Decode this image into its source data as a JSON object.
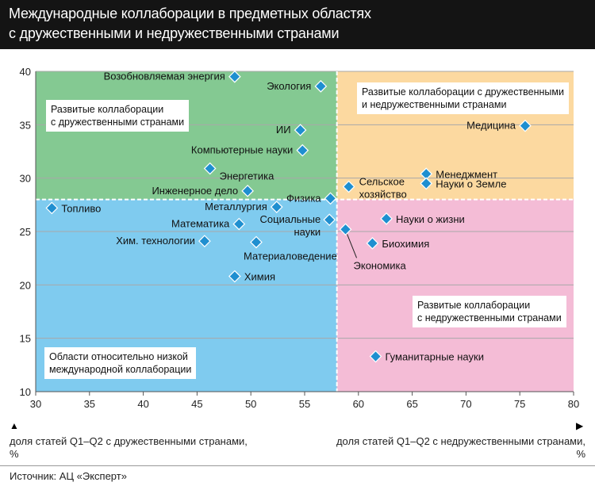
{
  "title_line1": "Международные коллаборации в предметных областях",
  "title_line2": "с дружественными и недружественными странами",
  "xlabel_left_line1": "доля статей Q1–Q2 с дружественными странами,",
  "xlabel_left_line2": "%",
  "xlabel_right_line1": "доля статей Q1–Q2 с недружественными странами,",
  "xlabel_right_line2": "%",
  "source": "Источник: АЦ «Эксперт»",
  "quadrants": {
    "top_left_line1": "Развитые коллаборации",
    "top_left_line2": "с дружественными странами",
    "top_right_line1": "Развитые коллаборации с дружественными",
    "top_right_line2": "и недружественными странами",
    "bottom_right_line1": "Развитые коллаборации",
    "bottom_right_line2": "с недружественными странами",
    "bottom_left_line1": "Области относительно низкой",
    "bottom_left_line2": "международной коллаборации"
  },
  "colors": {
    "top_left": "#84c992",
    "top_right": "#fcd9a0",
    "bottom_left": "#7fcbef",
    "bottom_right": "#f4bcd6",
    "marker": "#1f8fd0",
    "marker_stroke": "#ffffff"
  },
  "chart_data": {
    "type": "scatter",
    "title": "Международные коллаборации в предметных областях с дружественными и недружественными странами",
    "xlim": [
      30,
      80
    ],
    "ylim": [
      10,
      40
    ],
    "x_ticks": [
      "30",
      "35",
      "40",
      "45",
      "50",
      "55",
      "60",
      "65",
      "70",
      "75",
      "80"
    ],
    "y_ticks": [
      "10",
      "15",
      "20",
      "25",
      "30",
      "35",
      "40"
    ],
    "divider_x": 58,
    "divider_y": 28,
    "points": [
      {
        "label": "Возобновляемая энергия",
        "x": 48.5,
        "y": 39.5,
        "anchor": "end",
        "pos": "left"
      },
      {
        "label": "Экология",
        "x": 56.5,
        "y": 38.6,
        "anchor": "end",
        "pos": "left"
      },
      {
        "label": "ИИ",
        "x": 54.6,
        "y": 34.5,
        "anchor": "end",
        "pos": "left"
      },
      {
        "label": "Компьютерные науки",
        "x": 54.8,
        "y": 32.6,
        "anchor": "end",
        "pos": "left"
      },
      {
        "label": "Энергетика",
        "x": 46.2,
        "y": 30.9,
        "anchor": "start",
        "pos": "below-right"
      },
      {
        "label": "Инженерное дело",
        "x": 49.7,
        "y": 28.8,
        "anchor": "end",
        "pos": "left"
      },
      {
        "label": "Физика",
        "x": 57.4,
        "y": 28.1,
        "anchor": "end",
        "pos": "left"
      },
      {
        "label": "Металлургия",
        "x": 52.4,
        "y": 27.3,
        "anchor": "end",
        "pos": "left"
      },
      {
        "label": "Топливо",
        "x": 31.5,
        "y": 27.2,
        "anchor": "start",
        "pos": "right"
      },
      {
        "label": "Математика",
        "x": 48.9,
        "y": 25.7,
        "anchor": "end",
        "pos": "left"
      },
      {
        "label": "Социальные науки",
        "x": 57.3,
        "y": 26.1,
        "anchor": "end",
        "pos": "left-two-line",
        "label_line1": "Социальные",
        "label_line2": "науки"
      },
      {
        "label": "Хим. технологии",
        "x": 45.7,
        "y": 24.1,
        "anchor": "end",
        "pos": "left"
      },
      {
        "label": "Материаловедение",
        "x": 50.5,
        "y": 24.0,
        "anchor": "start",
        "pos": "below"
      },
      {
        "label": "Химия",
        "x": 48.5,
        "y": 20.8,
        "anchor": "start",
        "pos": "right"
      },
      {
        "label": "Сельское хозяйство",
        "x": 59.1,
        "y": 29.2,
        "anchor": "start",
        "pos": "right-two-line",
        "label_line1": "Сельское",
        "label_line2": "хозяйство"
      },
      {
        "label": "Менеджмент",
        "x": 66.3,
        "y": 30.4,
        "anchor": "start",
        "pos": "right"
      },
      {
        "label": "Науки о Земле",
        "x": 66.3,
        "y": 29.5,
        "anchor": "start",
        "pos": "right"
      },
      {
        "label": "Медицина",
        "x": 75.5,
        "y": 34.9,
        "anchor": "end",
        "pos": "left"
      },
      {
        "label": "Науки о жизни",
        "x": 62.6,
        "y": 26.2,
        "anchor": "start",
        "pos": "right"
      },
      {
        "label": "Экономика",
        "x": 58.8,
        "y": 25.2,
        "anchor": "start",
        "pos": "below-leader"
      },
      {
        "label": "Биохимия",
        "x": 61.3,
        "y": 23.9,
        "anchor": "start",
        "pos": "right"
      },
      {
        "label": "Гуманитарные науки",
        "x": 61.6,
        "y": 13.3,
        "anchor": "start",
        "pos": "right"
      }
    ]
  }
}
